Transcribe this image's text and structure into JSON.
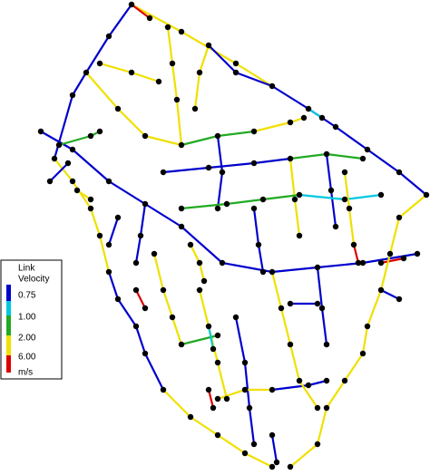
{
  "legend": {
    "title": [
      "Link",
      "Velocity"
    ],
    "breaks": [
      "0.75",
      "1.00",
      "2.00",
      "6.00"
    ],
    "unit": "m/s"
  }
}
